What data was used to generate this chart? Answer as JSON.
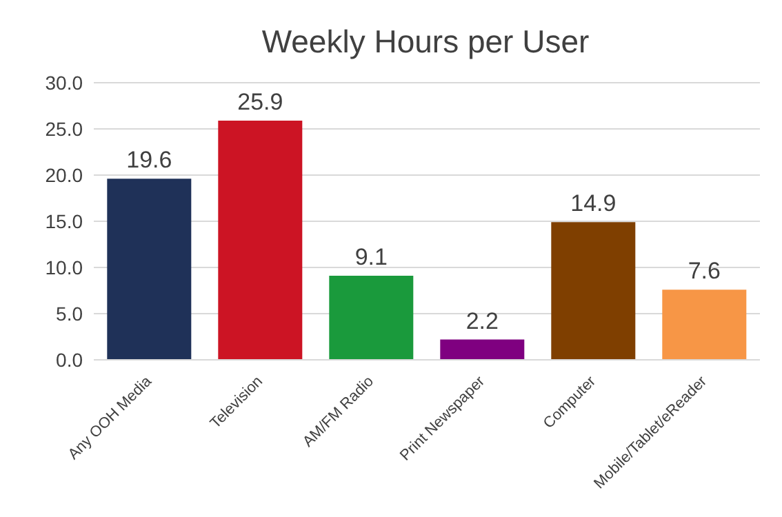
{
  "chart_data": {
    "type": "bar",
    "title": "Weekly Hours per User",
    "categories": [
      "Any OOH Media",
      "Television",
      "AM/FM Radio",
      "Print Newspaper",
      "Computer",
      "Mobile/Tablet/eReader"
    ],
    "values": [
      19.6,
      25.9,
      9.1,
      2.2,
      14.9,
      7.6
    ],
    "colors": [
      "#1f3158",
      "#cc1424",
      "#1a9a3c",
      "#7f0080",
      "#7f3f00",
      "#f79646"
    ],
    "ylim": [
      0,
      30
    ],
    "yticks": [
      {
        "value": 0,
        "label": "0.0"
      },
      {
        "value": 5,
        "label": "5.0"
      },
      {
        "value": 10,
        "label": "10.0"
      },
      {
        "value": 15,
        "label": "15.0"
      },
      {
        "value": 20,
        "label": "20.0"
      },
      {
        "value": 25,
        "label": "25.0"
      },
      {
        "value": 30,
        "label": "30.0"
      }
    ],
    "grid": "y",
    "data_labels": true,
    "legend": false
  }
}
